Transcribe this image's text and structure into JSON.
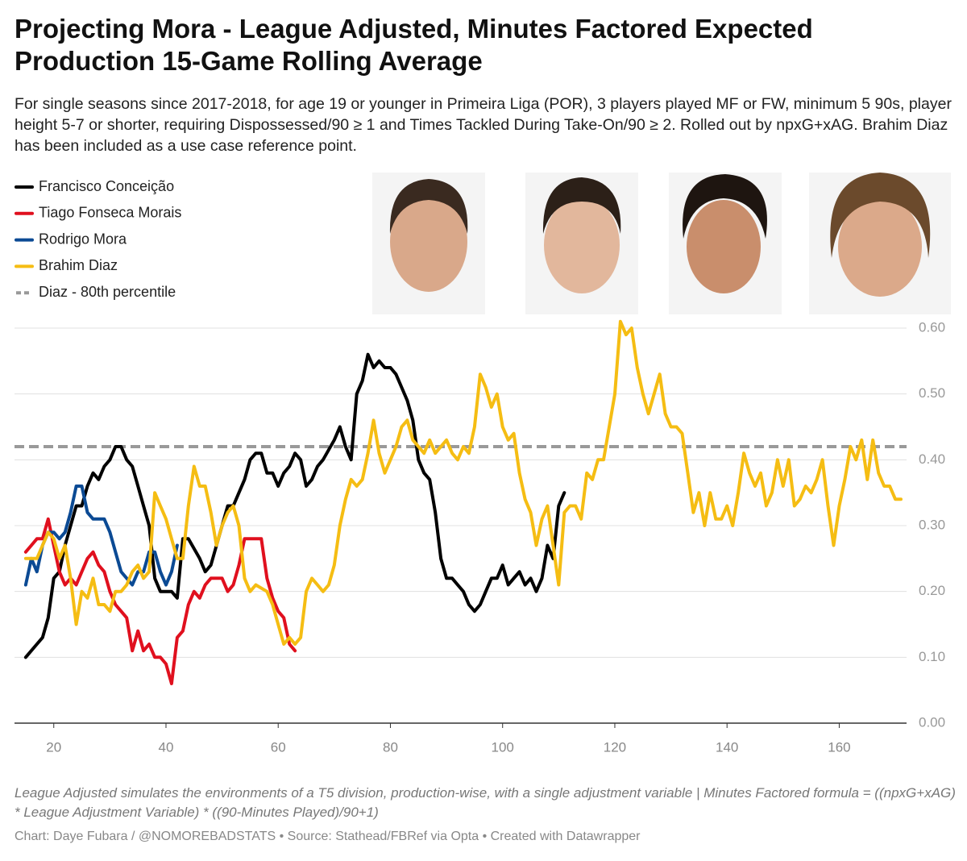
{
  "chart_data": {
    "type": "line",
    "title": "Projecting Mora - League Adjusted, Minutes Factored Expected Production 15-Game Rolling Average",
    "subtitle": "For single seasons since 2017-2018, for age 19 or younger in Primeira Liga (POR), 3 players played MF or FW, minimum 5 90s, player height 5-7 or shorter, requiring Dispossessed/90 ≥ 1 and Times Tackled During Take-On/90 ≥ 2. Rolled out by npxG+xAG. Brahim Diaz has been included as a use case reference point.",
    "notes": "League Adjusted simulates the environments of a T5 division, production-wise, with a single adjustment variable | Minutes Factored formula = ((npxG+xAG) * League Adjustment Variable) * ((90-Minutes Played)/90+1)",
    "credit": "Chart: Daye Fubara / @NOMOREBADSTATS • Source: Stathead/FBRef via Opta • Created with Datawrapper",
    "xlim": [
      13,
      172
    ],
    "xticks": [
      20,
      40,
      60,
      80,
      100,
      120,
      140,
      160
    ],
    "ylim": [
      0,
      0.6
    ],
    "yticks": [
      {
        "value": 0,
        "label": "0.00"
      },
      {
        "value": 0.1,
        "label": "0.10"
      },
      {
        "value": 0.2,
        "label": "0.20"
      },
      {
        "value": 0.3,
        "label": "0.30"
      },
      {
        "value": 0.4,
        "label": "0.40"
      },
      {
        "value": 0.5,
        "label": "0.50"
      },
      {
        "value": 0.6,
        "label": "0.60"
      }
    ],
    "grid": true,
    "series": [
      {
        "name": "Francisco Conceição",
        "color": "#000000",
        "x": [
          15,
          17,
          18,
          19,
          20,
          21,
          22,
          24,
          25,
          26,
          27,
          28,
          29,
          30,
          31,
          32,
          33,
          34,
          35,
          36,
          37,
          38,
          39,
          40,
          41,
          42,
          43,
          44,
          46,
          47,
          48,
          50,
          51,
          52,
          54,
          55,
          56,
          57,
          58,
          59,
          60,
          61,
          62,
          63,
          64,
          65,
          66,
          67,
          68,
          70,
          71,
          72,
          73,
          74,
          75,
          76,
          77,
          78,
          79,
          80,
          81,
          82,
          83,
          84,
          85,
          86,
          87,
          88,
          89,
          90,
          91,
          92,
          93,
          94,
          95,
          96,
          97,
          98,
          99,
          100,
          101,
          102,
          103,
          104,
          105,
          106,
          107,
          108,
          109,
          110,
          111
        ],
        "values": [
          0.1,
          0.12,
          0.13,
          0.16,
          0.22,
          0.23,
          0.27,
          0.33,
          0.33,
          0.36,
          0.38,
          0.37,
          0.39,
          0.4,
          0.42,
          0.42,
          0.4,
          0.39,
          0.36,
          0.33,
          0.3,
          0.22,
          0.2,
          0.2,
          0.2,
          0.19,
          0.28,
          0.28,
          0.25,
          0.23,
          0.24,
          0.3,
          0.33,
          0.33,
          0.37,
          0.4,
          0.41,
          0.41,
          0.38,
          0.38,
          0.36,
          0.38,
          0.39,
          0.41,
          0.4,
          0.36,
          0.37,
          0.39,
          0.4,
          0.43,
          0.45,
          0.42,
          0.4,
          0.5,
          0.52,
          0.56,
          0.54,
          0.55,
          0.54,
          0.54,
          0.53,
          0.51,
          0.49,
          0.46,
          0.4,
          0.38,
          0.37,
          0.32,
          0.25,
          0.22,
          0.22,
          0.21,
          0.2,
          0.18,
          0.17,
          0.18,
          0.2,
          0.22,
          0.22,
          0.24,
          0.21,
          0.22,
          0.23,
          0.21,
          0.22,
          0.2,
          0.22,
          0.27,
          0.25,
          0.33,
          0.35
        ]
      },
      {
        "name": "Tiago Fonseca Morais",
        "color": "#e0101e",
        "x": [
          15,
          16,
          17,
          18,
          19,
          20,
          21,
          22,
          23,
          24,
          25,
          26,
          27,
          28,
          29,
          30,
          31,
          32,
          33,
          34,
          35,
          36,
          37,
          38,
          39,
          40,
          41,
          42,
          43,
          44,
          45,
          46,
          47,
          48,
          49,
          50,
          51,
          52,
          53,
          54,
          55,
          56,
          57,
          58,
          59,
          60,
          61,
          62,
          63
        ],
        "values": [
          0.26,
          0.27,
          0.28,
          0.28,
          0.31,
          0.27,
          0.23,
          0.21,
          0.22,
          0.21,
          0.23,
          0.25,
          0.26,
          0.24,
          0.23,
          0.2,
          0.18,
          0.17,
          0.16,
          0.11,
          0.14,
          0.11,
          0.12,
          0.1,
          0.1,
          0.09,
          0.06,
          0.13,
          0.14,
          0.18,
          0.2,
          0.19,
          0.21,
          0.22,
          0.22,
          0.22,
          0.2,
          0.21,
          0.24,
          0.28,
          0.28,
          0.28,
          0.28,
          0.22,
          0.19,
          0.17,
          0.16,
          0.12,
          0.11
        ]
      },
      {
        "name": "Rodrigo Mora",
        "color": "#0b4a94",
        "x": [
          15,
          16,
          17,
          18,
          19,
          20,
          21,
          22,
          23,
          24,
          25,
          26,
          27,
          28,
          29,
          30,
          31,
          32,
          33,
          34,
          35,
          36,
          37,
          38,
          39,
          40,
          41,
          42
        ],
        "values": [
          0.21,
          0.25,
          0.23,
          0.27,
          0.29,
          0.29,
          0.28,
          0.29,
          0.32,
          0.36,
          0.36,
          0.32,
          0.31,
          0.31,
          0.31,
          0.29,
          0.26,
          0.23,
          0.22,
          0.21,
          0.23,
          0.23,
          0.26,
          0.26,
          0.23,
          0.21,
          0.23,
          0.27
        ]
      },
      {
        "name": "Brahim Diaz",
        "color": "#f5bd13",
        "x": [
          15,
          16,
          17,
          18,
          19,
          20,
          21,
          22,
          23,
          24,
          25,
          26,
          27,
          28,
          29,
          30,
          31,
          32,
          33,
          34,
          35,
          36,
          37,
          38,
          39,
          40,
          41,
          42,
          43,
          44,
          45,
          46,
          47,
          48,
          49,
          50,
          51,
          52,
          53,
          54,
          55,
          56,
          58,
          59,
          60,
          61,
          62,
          63,
          64,
          65,
          66,
          67,
          68,
          69,
          70,
          71,
          72,
          73,
          74,
          75,
          76,
          77,
          78,
          79,
          80,
          81,
          82,
          83,
          84,
          85,
          86,
          87,
          88,
          89,
          90,
          91,
          92,
          93,
          94,
          95,
          96,
          97,
          98,
          99,
          100,
          101,
          102,
          103,
          104,
          105,
          106,
          107,
          108,
          109,
          110,
          111,
          112,
          113,
          114,
          115,
          116,
          117,
          118,
          119,
          120,
          121,
          122,
          123,
          124,
          125,
          126,
          127,
          128,
          129,
          130,
          131,
          132,
          133,
          134,
          135,
          136,
          137,
          138,
          139,
          140,
          141,
          142,
          143,
          144,
          145,
          146,
          147,
          148,
          149,
          150,
          151,
          152,
          153,
          154,
          155,
          156,
          157,
          158,
          159,
          160,
          161,
          162,
          163,
          164,
          165,
          166,
          167,
          168,
          169,
          170,
          171
        ],
        "values": [
          0.25,
          0.25,
          0.25,
          0.27,
          0.29,
          0.28,
          0.25,
          0.27,
          0.22,
          0.15,
          0.2,
          0.19,
          0.22,
          0.18,
          0.18,
          0.17,
          0.2,
          0.2,
          0.21,
          0.23,
          0.24,
          0.22,
          0.23,
          0.35,
          0.33,
          0.31,
          0.28,
          0.25,
          0.25,
          0.33,
          0.39,
          0.36,
          0.36,
          0.32,
          0.27,
          0.3,
          0.32,
          0.33,
          0.3,
          0.22,
          0.2,
          0.21,
          0.2,
          0.18,
          0.15,
          0.12,
          0.13,
          0.12,
          0.13,
          0.2,
          0.22,
          0.21,
          0.2,
          0.21,
          0.24,
          0.3,
          0.34,
          0.37,
          0.36,
          0.37,
          0.41,
          0.46,
          0.41,
          0.38,
          0.4,
          0.42,
          0.45,
          0.46,
          0.43,
          0.42,
          0.41,
          0.43,
          0.41,
          0.42,
          0.43,
          0.41,
          0.4,
          0.42,
          0.41,
          0.45,
          0.53,
          0.51,
          0.48,
          0.5,
          0.45,
          0.43,
          0.44,
          0.38,
          0.34,
          0.32,
          0.27,
          0.31,
          0.33,
          0.27,
          0.21,
          0.32,
          0.33,
          0.33,
          0.31,
          0.38,
          0.37,
          0.4,
          0.4,
          0.45,
          0.5,
          0.61,
          0.59,
          0.6,
          0.54,
          0.5,
          0.47,
          0.5,
          0.53,
          0.47,
          0.45,
          0.45,
          0.44,
          0.38,
          0.32,
          0.35,
          0.3,
          0.35,
          0.31,
          0.31,
          0.33,
          0.3,
          0.35,
          0.41,
          0.38,
          0.36,
          0.38,
          0.33,
          0.35,
          0.4,
          0.36,
          0.4,
          0.33,
          0.34,
          0.36,
          0.35,
          0.37,
          0.4,
          0.33,
          0.27,
          0.33,
          0.37,
          0.42,
          0.4,
          0.43,
          0.37,
          0.43,
          0.38,
          0.36,
          0.36,
          0.34,
          0.34
        ]
      }
    ],
    "reference": {
      "name": "Diaz - 80th percentile",
      "value": 0.42,
      "color": "#999999",
      "dashed": true
    }
  }
}
